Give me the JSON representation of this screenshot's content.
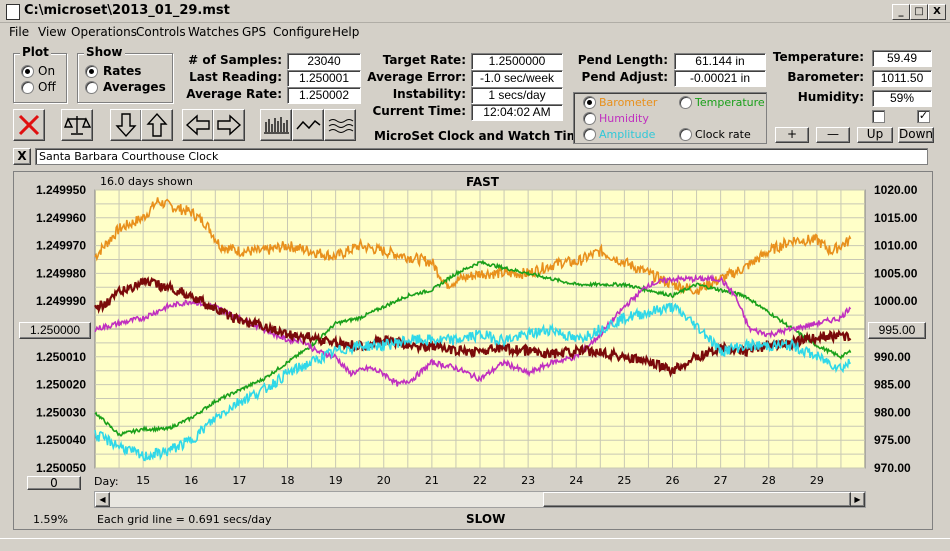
{
  "window": {
    "title": "C:\\microset\\2013_01_29.mst",
    "minimize": "_",
    "maximize": "□",
    "close": "X"
  },
  "menu": [
    "File",
    "View",
    "Operations",
    "Controls",
    "Watches",
    "GPS",
    "Configure",
    "Help"
  ],
  "plot_group": {
    "title": "Plot",
    "options": [
      "On",
      "Off"
    ],
    "selected": "On"
  },
  "show_group": {
    "title": "Show",
    "options": [
      "Rates",
      "Averages"
    ],
    "selected": "Rates"
  },
  "stats": {
    "samples_label": "# of Samples:",
    "samples": "23040",
    "last_reading_label": "Last Reading:",
    "last_reading": "1.250001",
    "average_rate_label": "Average Rate:",
    "average_rate": "1.250002"
  },
  "rates": {
    "target_rate_label": "Target Rate:",
    "target_rate": "1.2500000",
    "average_error_label": "Average Error:",
    "average_error": "-1.0 sec/week",
    "instability_label": "Instability:",
    "instability": "1 secs/day",
    "current_time_label": "Current Time:",
    "current_time": "12:04:02 AM",
    "app_name": "MicroSet Clock and Watch Timer"
  },
  "pendulum": {
    "length_label": "Pend Length:",
    "length": "61.144 in",
    "adjust_label": "Pend Adjust:",
    "adjust": "-0.00021 in"
  },
  "sensors": {
    "temperature_label": "Temperature:",
    "temperature": "59.49",
    "barometer_label": "Barometer:",
    "barometer": "1011.50",
    "humidity_label": "Humidity:",
    "humidity": "59%"
  },
  "series_select": {
    "options": [
      {
        "label": "Barometer",
        "color": "#e8901c",
        "selected": true
      },
      {
        "label": "Temperature",
        "color": "#1aa01a",
        "selected": false
      },
      {
        "label": "Humidity",
        "color": "#c030c0",
        "selected": false
      },
      {
        "label": "Clock rate",
        "color": "#000000",
        "selected": false
      },
      {
        "label": "Amplitude",
        "color": "#30d0e0",
        "selected": false
      }
    ]
  },
  "scale_buttons": {
    "plus": "+",
    "minus": "—",
    "up": "Up",
    "down": "Down"
  },
  "checks": [
    false,
    true
  ],
  "toolbar_icons": [
    "clear-icon",
    "balance-icon",
    "arrow-down-icon",
    "arrow-up-icon",
    "arrow-left-icon",
    "arrow-right-icon",
    "bar-chart-icon",
    "line-chart-icon",
    "wave-chart-icon"
  ],
  "note": {
    "close": "X",
    "text": "Santa Barbara Courthouse Clock"
  },
  "graph": {
    "days_shown": "16.0 days shown",
    "top_label": "FAST",
    "bottom_label": "SLOW",
    "grid_note": "Each grid line = 0.691 secs/day",
    "left_pct": "1.59%",
    "center_left": "1.250000",
    "center_right": "995.00",
    "day_field": "0",
    "day_label": "Day:",
    "background": "#ffffc8"
  },
  "chart_data": {
    "type": "line",
    "x_label": "Day:",
    "x_ticks": [
      "15",
      "16",
      "17",
      "18",
      "19",
      "20",
      "21",
      "22",
      "23",
      "24",
      "25",
      "26",
      "27",
      "28",
      "29"
    ],
    "xlim": [
      14.0,
      30.0
    ],
    "y_left_ticks": [
      "1.249950",
      "1.249960",
      "1.249970",
      "1.249980",
      "1.249990",
      "1.250000",
      "1.250010",
      "1.250020",
      "1.250030",
      "1.250040",
      "1.250050"
    ],
    "y_right_ticks": [
      "1020.00",
      "1015.00",
      "1010.00",
      "1005.00",
      "1000.00",
      "995.00",
      "990.00",
      "985.00",
      "980.00",
      "975.00",
      "970.00"
    ],
    "y_left_range": [
      1.24995,
      1.25005
    ],
    "y_right_range": [
      1020,
      970
    ],
    "series": [
      {
        "key": "barometer",
        "color": "#e8901c",
        "noise": 1.0,
        "points": [
          [
            14.0,
            1008
          ],
          [
            14.5,
            1013
          ],
          [
            15.0,
            1015
          ],
          [
            15.3,
            1018
          ],
          [
            15.6,
            1017
          ],
          [
            16.0,
            1016
          ],
          [
            16.3,
            1014
          ],
          [
            16.6,
            1010
          ],
          [
            17.0,
            1009
          ],
          [
            17.5,
            1009
          ],
          [
            18.0,
            1010
          ],
          [
            18.5,
            1009
          ],
          [
            19.0,
            1008
          ],
          [
            19.5,
            1010
          ],
          [
            20.0,
            1009
          ],
          [
            20.5,
            1008
          ],
          [
            21.0,
            1007
          ],
          [
            21.3,
            1003
          ],
          [
            21.6,
            1004
          ],
          [
            22.0,
            1005
          ],
          [
            22.5,
            1005
          ],
          [
            23.0,
            1005
          ],
          [
            23.3,
            1006
          ],
          [
            23.7,
            1007
          ],
          [
            24.0,
            1007
          ],
          [
            24.5,
            1009
          ],
          [
            25.0,
            1007
          ],
          [
            25.5,
            1005
          ],
          [
            26.0,
            1003
          ],
          [
            26.5,
            1002
          ],
          [
            27.0,
            1004
          ],
          [
            27.5,
            1006
          ],
          [
            28.0,
            1009
          ],
          [
            28.5,
            1011
          ],
          [
            29.0,
            1011
          ],
          [
            29.3,
            1009
          ],
          [
            29.7,
            1011
          ]
        ]
      },
      {
        "key": "temperature",
        "color": "#1aa01a",
        "noise": 0.3,
        "points": [
          [
            14.0,
            980
          ],
          [
            14.5,
            976
          ],
          [
            15.0,
            977
          ],
          [
            15.5,
            977
          ],
          [
            16.0,
            979
          ],
          [
            16.5,
            982
          ],
          [
            17.0,
            984
          ],
          [
            17.5,
            986
          ],
          [
            18.0,
            989
          ],
          [
            18.5,
            992
          ],
          [
            19.0,
            996
          ],
          [
            19.5,
            997
          ],
          [
            20.0,
            999
          ],
          [
            20.5,
            1001
          ],
          [
            21.0,
            1002
          ],
          [
            21.5,
            1005
          ],
          [
            22.0,
            1007
          ],
          [
            22.5,
            1006
          ],
          [
            23.0,
            1005
          ],
          [
            23.5,
            1004
          ],
          [
            24.0,
            1003
          ],
          [
            24.5,
            1003
          ],
          [
            25.0,
            1003
          ],
          [
            25.5,
            1002
          ],
          [
            26.0,
            1001
          ],
          [
            26.5,
            1003
          ],
          [
            27.0,
            1002
          ],
          [
            27.5,
            1001
          ],
          [
            28.0,
            998
          ],
          [
            28.5,
            995
          ],
          [
            29.0,
            992
          ],
          [
            29.5,
            990
          ],
          [
            29.7,
            991
          ]
        ]
      },
      {
        "key": "humidity",
        "color": "#c030c0",
        "noise": 0.5,
        "points": [
          [
            14.0,
            995
          ],
          [
            14.5,
            996
          ],
          [
            15.0,
            997
          ],
          [
            15.5,
            999
          ],
          [
            16.0,
            1000
          ],
          [
            16.5,
            999
          ],
          [
            17.0,
            997
          ],
          [
            17.5,
            995
          ],
          [
            18.0,
            993
          ],
          [
            18.3,
            993
          ],
          [
            18.6,
            991
          ],
          [
            19.0,
            990
          ],
          [
            19.3,
            987
          ],
          [
            19.7,
            988
          ],
          [
            20.0,
            987
          ],
          [
            20.3,
            985
          ],
          [
            20.6,
            986
          ],
          [
            21.0,
            989
          ],
          [
            21.5,
            988
          ],
          [
            22.0,
            986
          ],
          [
            22.5,
            989
          ],
          [
            23.0,
            987
          ],
          [
            23.5,
            989
          ],
          [
            24.0,
            990
          ],
          [
            24.5,
            994
          ],
          [
            25.0,
            999
          ],
          [
            25.5,
            1003
          ],
          [
            26.0,
            1004
          ],
          [
            26.5,
            1004
          ],
          [
            27.0,
            1004
          ],
          [
            27.3,
            1001
          ],
          [
            27.6,
            995
          ],
          [
            28.0,
            994
          ],
          [
            28.5,
            995
          ],
          [
            29.0,
            996
          ],
          [
            29.5,
            997
          ],
          [
            29.7,
            999
          ]
        ]
      },
      {
        "key": "clock_rate",
        "color": "#7a0a0a",
        "noise": 1.8e-06,
        "points": [
          [
            14.0,
            1.249993
          ],
          [
            14.5,
            1.249987
          ],
          [
            15.0,
            1.249983
          ],
          [
            15.5,
            1.249985
          ],
          [
            16.0,
            1.249988
          ],
          [
            16.5,
            1.249993
          ],
          [
            17.0,
            1.249997
          ],
          [
            17.5,
            1.249999
          ],
          [
            18.0,
            1.250002
          ],
          [
            18.5,
            1.250003
          ],
          [
            19.0,
            1.250005
          ],
          [
            19.5,
            1.250006
          ],
          [
            20.0,
            1.250004
          ],
          [
            20.5,
            1.250006
          ],
          [
            21.0,
            1.250006
          ],
          [
            21.5,
            1.250008
          ],
          [
            22.0,
            1.250008
          ],
          [
            22.5,
            1.250007
          ],
          [
            23.0,
            1.250008
          ],
          [
            23.5,
            1.250009
          ],
          [
            24.0,
            1.250008
          ],
          [
            24.5,
            1.250008
          ],
          [
            25.0,
            1.25001
          ],
          [
            25.5,
            1.250012
          ],
          [
            26.0,
            1.250015
          ],
          [
            26.5,
            1.25001
          ],
          [
            27.0,
            1.250007
          ],
          [
            27.5,
            1.250008
          ],
          [
            28.0,
            1.250006
          ],
          [
            28.5,
            1.250005
          ],
          [
            29.0,
            1.250003
          ],
          [
            29.5,
            1.250002
          ],
          [
            29.7,
            1.250004
          ]
        ]
      },
      {
        "key": "amplitude",
        "color": "#30d8e8",
        "noise": 1.0,
        "points": [
          [
            14.0,
            976
          ],
          [
            14.5,
            974
          ],
          [
            15.0,
            972
          ],
          [
            15.5,
            973
          ],
          [
            16.0,
            975
          ],
          [
            16.5,
            979
          ],
          [
            17.0,
            982
          ],
          [
            17.5,
            984
          ],
          [
            18.0,
            987
          ],
          [
            18.5,
            989
          ],
          [
            19.0,
            991
          ],
          [
            19.5,
            992
          ],
          [
            20.0,
            992
          ],
          [
            20.5,
            993
          ],
          [
            21.0,
            993
          ],
          [
            21.5,
            993
          ],
          [
            22.0,
            994
          ],
          [
            22.5,
            993
          ],
          [
            23.0,
            994
          ],
          [
            23.5,
            995
          ],
          [
            24.0,
            993
          ],
          [
            24.5,
            995
          ],
          [
            25.0,
            997
          ],
          [
            25.5,
            998
          ],
          [
            26.0,
            999
          ],
          [
            26.3,
            997
          ],
          [
            26.7,
            994
          ],
          [
            27.0,
            991
          ],
          [
            27.5,
            992
          ],
          [
            28.0,
            992
          ],
          [
            28.5,
            992
          ],
          [
            29.0,
            990
          ],
          [
            29.5,
            988
          ],
          [
            29.7,
            989
          ]
        ]
      }
    ]
  }
}
